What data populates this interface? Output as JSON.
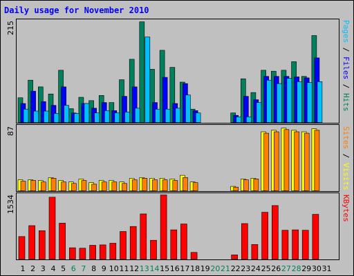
{
  "title": "Daily usage for November 2010",
  "colors": {
    "background": "#c0c0c0",
    "title": "#0000ff",
    "hits": "#00805c",
    "files": "#0000ff",
    "pages": "#00c0ff",
    "visits": "#ffff00",
    "sites": "#ff8000",
    "kbytes": "#ff0000",
    "weekend_day": "#00805c",
    "weekday": "#000000"
  },
  "legend_right": {
    "top": [
      {
        "text": "Pages",
        "color": "#00c0ff"
      },
      {
        "text": " / ",
        "color": "#000000"
      },
      {
        "text": "Files",
        "color": "#0000ff"
      },
      {
        "text": " / ",
        "color": "#000000"
      },
      {
        "text": "Hits",
        "color": "#00805c"
      }
    ],
    "middle": [
      {
        "text": "Sites",
        "color": "#ff8000"
      },
      {
        "text": " / ",
        "color": "#000000"
      },
      {
        "text": "Visits",
        "color": "#ffff00"
      }
    ],
    "bottom": [
      {
        "text": "KBytes",
        "color": "#ff0000"
      }
    ]
  },
  "chart_data": [
    {
      "type": "bar",
      "panel": "hits-files-pages",
      "ymax_label": "215",
      "ylim": [
        0,
        215
      ],
      "categories": [
        "1",
        "2",
        "3",
        "4",
        "5",
        "6",
        "7",
        "8",
        "9",
        "10",
        "11",
        "12",
        "13",
        "14",
        "15",
        "16",
        "17",
        "18",
        "19",
        "20",
        "21",
        "22",
        "23",
        "24",
        "25",
        "26",
        "27",
        "28",
        "29",
        "30",
        "31"
      ],
      "series": [
        {
          "name": "Hits",
          "color": "#00805c",
          "values": [
            52,
            89,
            75,
            60,
            110,
            29,
            53,
            46,
            57,
            42,
            90,
            133,
            212,
            112,
            152,
            116,
            85,
            28,
            0,
            0,
            0,
            20,
            92,
            63,
            110,
            108,
            110,
            128,
            97,
            183,
            0
          ]
        },
        {
          "name": "Files",
          "color": "#0000ff",
          "values": [
            40,
            66,
            44,
            36,
            75,
            20,
            40,
            30,
            42,
            25,
            55,
            75,
            0,
            42,
            95,
            40,
            82,
            25,
            0,
            0,
            0,
            15,
            55,
            48,
            97,
            97,
            97,
            96,
            94,
            136,
            0
          ]
        },
        {
          "name": "Pages",
          "color": "#00c0ff",
          "values": [
            28,
            24,
            24,
            19,
            36,
            19,
            40,
            20,
            25,
            20,
            22,
            30,
            180,
            28,
            28,
            30,
            58,
            20,
            0,
            0,
            0,
            12,
            12,
            42,
            89,
            82,
            93,
            86,
            84,
            86,
            0
          ]
        }
      ]
    },
    {
      "type": "bar",
      "panel": "visits-sites",
      "ymax_label": "87",
      "ylim": [
        0,
        87
      ],
      "categories": [
        "1",
        "2",
        "3",
        "4",
        "5",
        "6",
        "7",
        "8",
        "9",
        "10",
        "11",
        "12",
        "13",
        "14",
        "15",
        "16",
        "17",
        "18",
        "19",
        "20",
        "21",
        "22",
        "23",
        "24",
        "25",
        "26",
        "27",
        "28",
        "29",
        "30",
        "31"
      ],
      "series": [
        {
          "name": "Visits",
          "color": "#ffff00",
          "values": [
            15,
            15,
            14,
            18,
            14,
            12,
            16,
            11,
            14,
            14,
            12,
            17,
            18,
            17,
            17,
            16,
            21,
            12,
            0,
            0,
            0,
            6,
            16,
            17,
            80,
            82,
            85,
            82,
            80,
            84,
            0
          ]
        },
        {
          "name": "Sites",
          "color": "#ff8000",
          "values": [
            13,
            14,
            12,
            17,
            12,
            10,
            14,
            9,
            12,
            12,
            10,
            15,
            17,
            15,
            15,
            14,
            18,
            11,
            0,
            0,
            0,
            5,
            15,
            16,
            78,
            80,
            83,
            80,
            78,
            82,
            0
          ]
        }
      ]
    },
    {
      "type": "bar",
      "panel": "kbytes",
      "ymax_label": "1534",
      "ylim": [
        0,
        1534
      ],
      "categories": [
        "1",
        "2",
        "3",
        "4",
        "5",
        "6",
        "7",
        "8",
        "9",
        "10",
        "11",
        "12",
        "13",
        "14",
        "15",
        "16",
        "17",
        "18",
        "19",
        "20",
        "21",
        "22",
        "23",
        "24",
        "25",
        "26",
        "27",
        "28",
        "29",
        "30",
        "31"
      ],
      "series": [
        {
          "name": "KBytes",
          "color": "#ff0000",
          "values": [
            540,
            800,
            680,
            1480,
            860,
            270,
            260,
            330,
            340,
            380,
            660,
            780,
            1080,
            450,
            1534,
            700,
            840,
            160,
            0,
            0,
            0,
            100,
            850,
            350,
            1120,
            1280,
            690,
            700,
            690,
            1070,
            0
          ]
        }
      ]
    }
  ],
  "weekend_days": [
    "6",
    "7",
    "13",
    "14",
    "20",
    "21",
    "27",
    "28"
  ]
}
